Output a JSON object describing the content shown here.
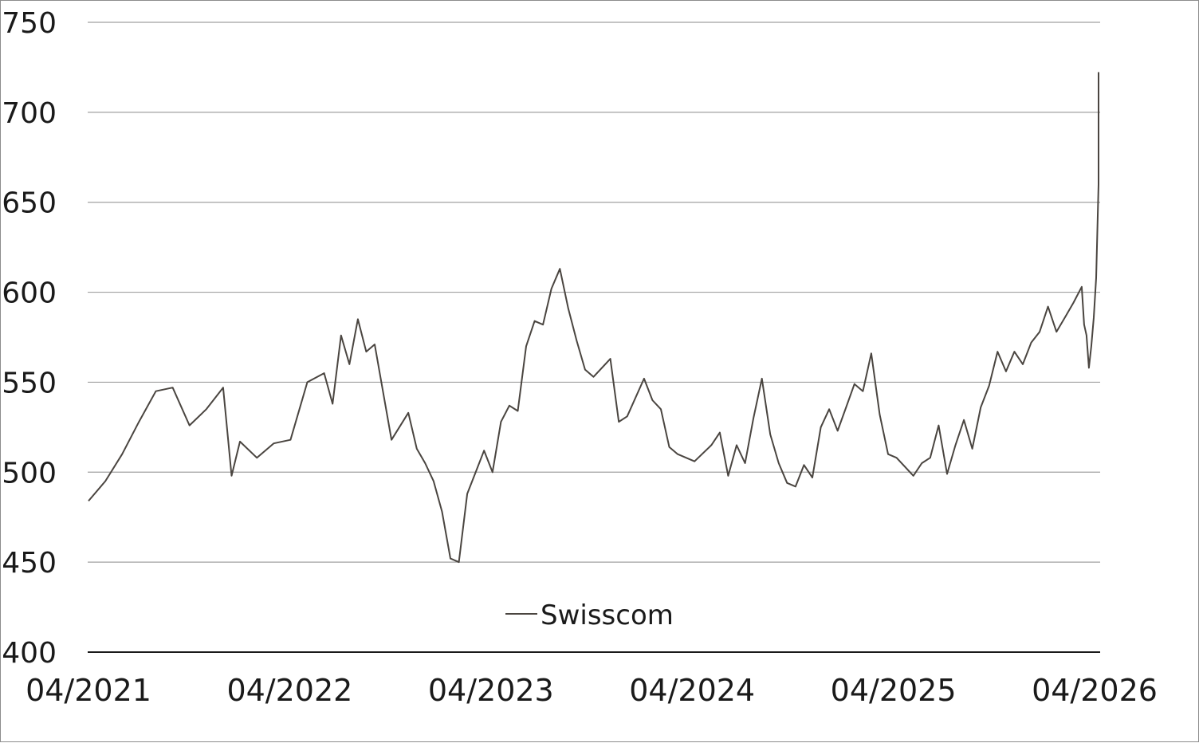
{
  "chart_data": {
    "type": "line",
    "title": "",
    "xlabel": "",
    "ylabel": "",
    "x_tick_labels": [
      "04/2021",
      "04/2022",
      "04/2023",
      "04/2024",
      "04/2025",
      "04/2026"
    ],
    "y_tick_labels": [
      "400",
      "450",
      "500",
      "550",
      "600",
      "650",
      "700",
      "750"
    ],
    "ylim": [
      400,
      750
    ],
    "xlim": [
      "2021-04",
      "2026-04"
    ],
    "grid": "horizontal",
    "legend_position": "bottom-center",
    "series": [
      {
        "name": "Swisscom",
        "color": "#4a4540",
        "points": [
          [
            "2021-04",
            484
          ],
          [
            "2021-05",
            495
          ],
          [
            "2021-06",
            510
          ],
          [
            "2021-07",
            528
          ],
          [
            "2021-08",
            545
          ],
          [
            "2021-09",
            547
          ],
          [
            "2021-10",
            526
          ],
          [
            "2021-11",
            535
          ],
          [
            "2021-12",
            547
          ],
          [
            "2021-12",
            498
          ],
          [
            "2022-01",
            517
          ],
          [
            "2022-02",
            508
          ],
          [
            "2022-03",
            516
          ],
          [
            "2022-04",
            518
          ],
          [
            "2022-05",
            550
          ],
          [
            "2022-06",
            555
          ],
          [
            "2022-06",
            538
          ],
          [
            "2022-07",
            576
          ],
          [
            "2022-07",
            560
          ],
          [
            "2022-08",
            585
          ],
          [
            "2022-08",
            567
          ],
          [
            "2022-09",
            571
          ],
          [
            "2022-10",
            518
          ],
          [
            "2022-11",
            533
          ],
          [
            "2022-11",
            513
          ],
          [
            "2022-12",
            505
          ],
          [
            "2022-12",
            495
          ],
          [
            "2023-01",
            478
          ],
          [
            "2023-01",
            452
          ],
          [
            "2023-02",
            450
          ],
          [
            "2023-02",
            488
          ],
          [
            "2023-03",
            500
          ],
          [
            "2023-03",
            512
          ],
          [
            "2023-04",
            500
          ],
          [
            "2023-04",
            528
          ],
          [
            "2023-05",
            537
          ],
          [
            "2023-05",
            534
          ],
          [
            "2023-06",
            570
          ],
          [
            "2023-06",
            584
          ],
          [
            "2023-07",
            582
          ],
          [
            "2023-07",
            602
          ],
          [
            "2023-08",
            613
          ],
          [
            "2023-08",
            591
          ],
          [
            "2023-09",
            573
          ],
          [
            "2023-09",
            557
          ],
          [
            "2023-10",
            553
          ],
          [
            "2023-11",
            563
          ],
          [
            "2023-11",
            528
          ],
          [
            "2023-12",
            531
          ],
          [
            "2024-01",
            552
          ],
          [
            "2024-01",
            540
          ],
          [
            "2024-02",
            535
          ],
          [
            "2024-02",
            514
          ],
          [
            "2024-03",
            510
          ],
          [
            "2024-04",
            506
          ],
          [
            "2024-05",
            515
          ],
          [
            "2024-05",
            522
          ],
          [
            "2024-06",
            498
          ],
          [
            "2024-06",
            515
          ],
          [
            "2024-07",
            505
          ],
          [
            "2024-07",
            530
          ],
          [
            "2024-08",
            552
          ],
          [
            "2024-08",
            521
          ],
          [
            "2024-09",
            505
          ],
          [
            "2024-09",
            494
          ],
          [
            "2024-10",
            492
          ],
          [
            "2024-10",
            504
          ],
          [
            "2024-11",
            497
          ],
          [
            "2024-11",
            525
          ],
          [
            "2024-12",
            535
          ],
          [
            "2024-12",
            523
          ],
          [
            "2025-01",
            536
          ],
          [
            "2025-01",
            549
          ],
          [
            "2025-02",
            545
          ],
          [
            "2025-02",
            566
          ],
          [
            "2025-03",
            532
          ],
          [
            "2025-03",
            510
          ],
          [
            "2025-04",
            508
          ],
          [
            "2025-05",
            498
          ],
          [
            "2025-05",
            505
          ],
          [
            "2025-06",
            508
          ],
          [
            "2025-06",
            526
          ],
          [
            "2025-07",
            499
          ],
          [
            "2025-07",
            515
          ],
          [
            "2025-08",
            529
          ],
          [
            "2025-08",
            513
          ],
          [
            "2025-09",
            536
          ],
          [
            "2025-09",
            548
          ],
          [
            "2025-10",
            567
          ],
          [
            "2025-10",
            556
          ],
          [
            "2025-11",
            567
          ],
          [
            "2025-11",
            560
          ],
          [
            "2025-12",
            572
          ],
          [
            "2025-12",
            578
          ],
          [
            "2026-01",
            592
          ],
          [
            "2026-01",
            578
          ],
          [
            "2026-02",
            586
          ],
          [
            "2026-02",
            594
          ],
          [
            "2026-03",
            603
          ],
          [
            "2026-03",
            582
          ],
          [
            "2026-03",
            576
          ],
          [
            "2026-03",
            558
          ],
          [
            "2026-03",
            570
          ],
          [
            "2026-03",
            586
          ],
          [
            "2026-03",
            608
          ],
          [
            "2026-04",
            660
          ],
          [
            "2026-04",
            702
          ],
          [
            "2026-04",
            722
          ],
          [
            "2026-04",
            718
          ],
          [
            "2026-04",
            688
          ],
          [
            "2026-04",
            668
          ],
          [
            "2026-04",
            671
          ]
        ]
      }
    ]
  }
}
